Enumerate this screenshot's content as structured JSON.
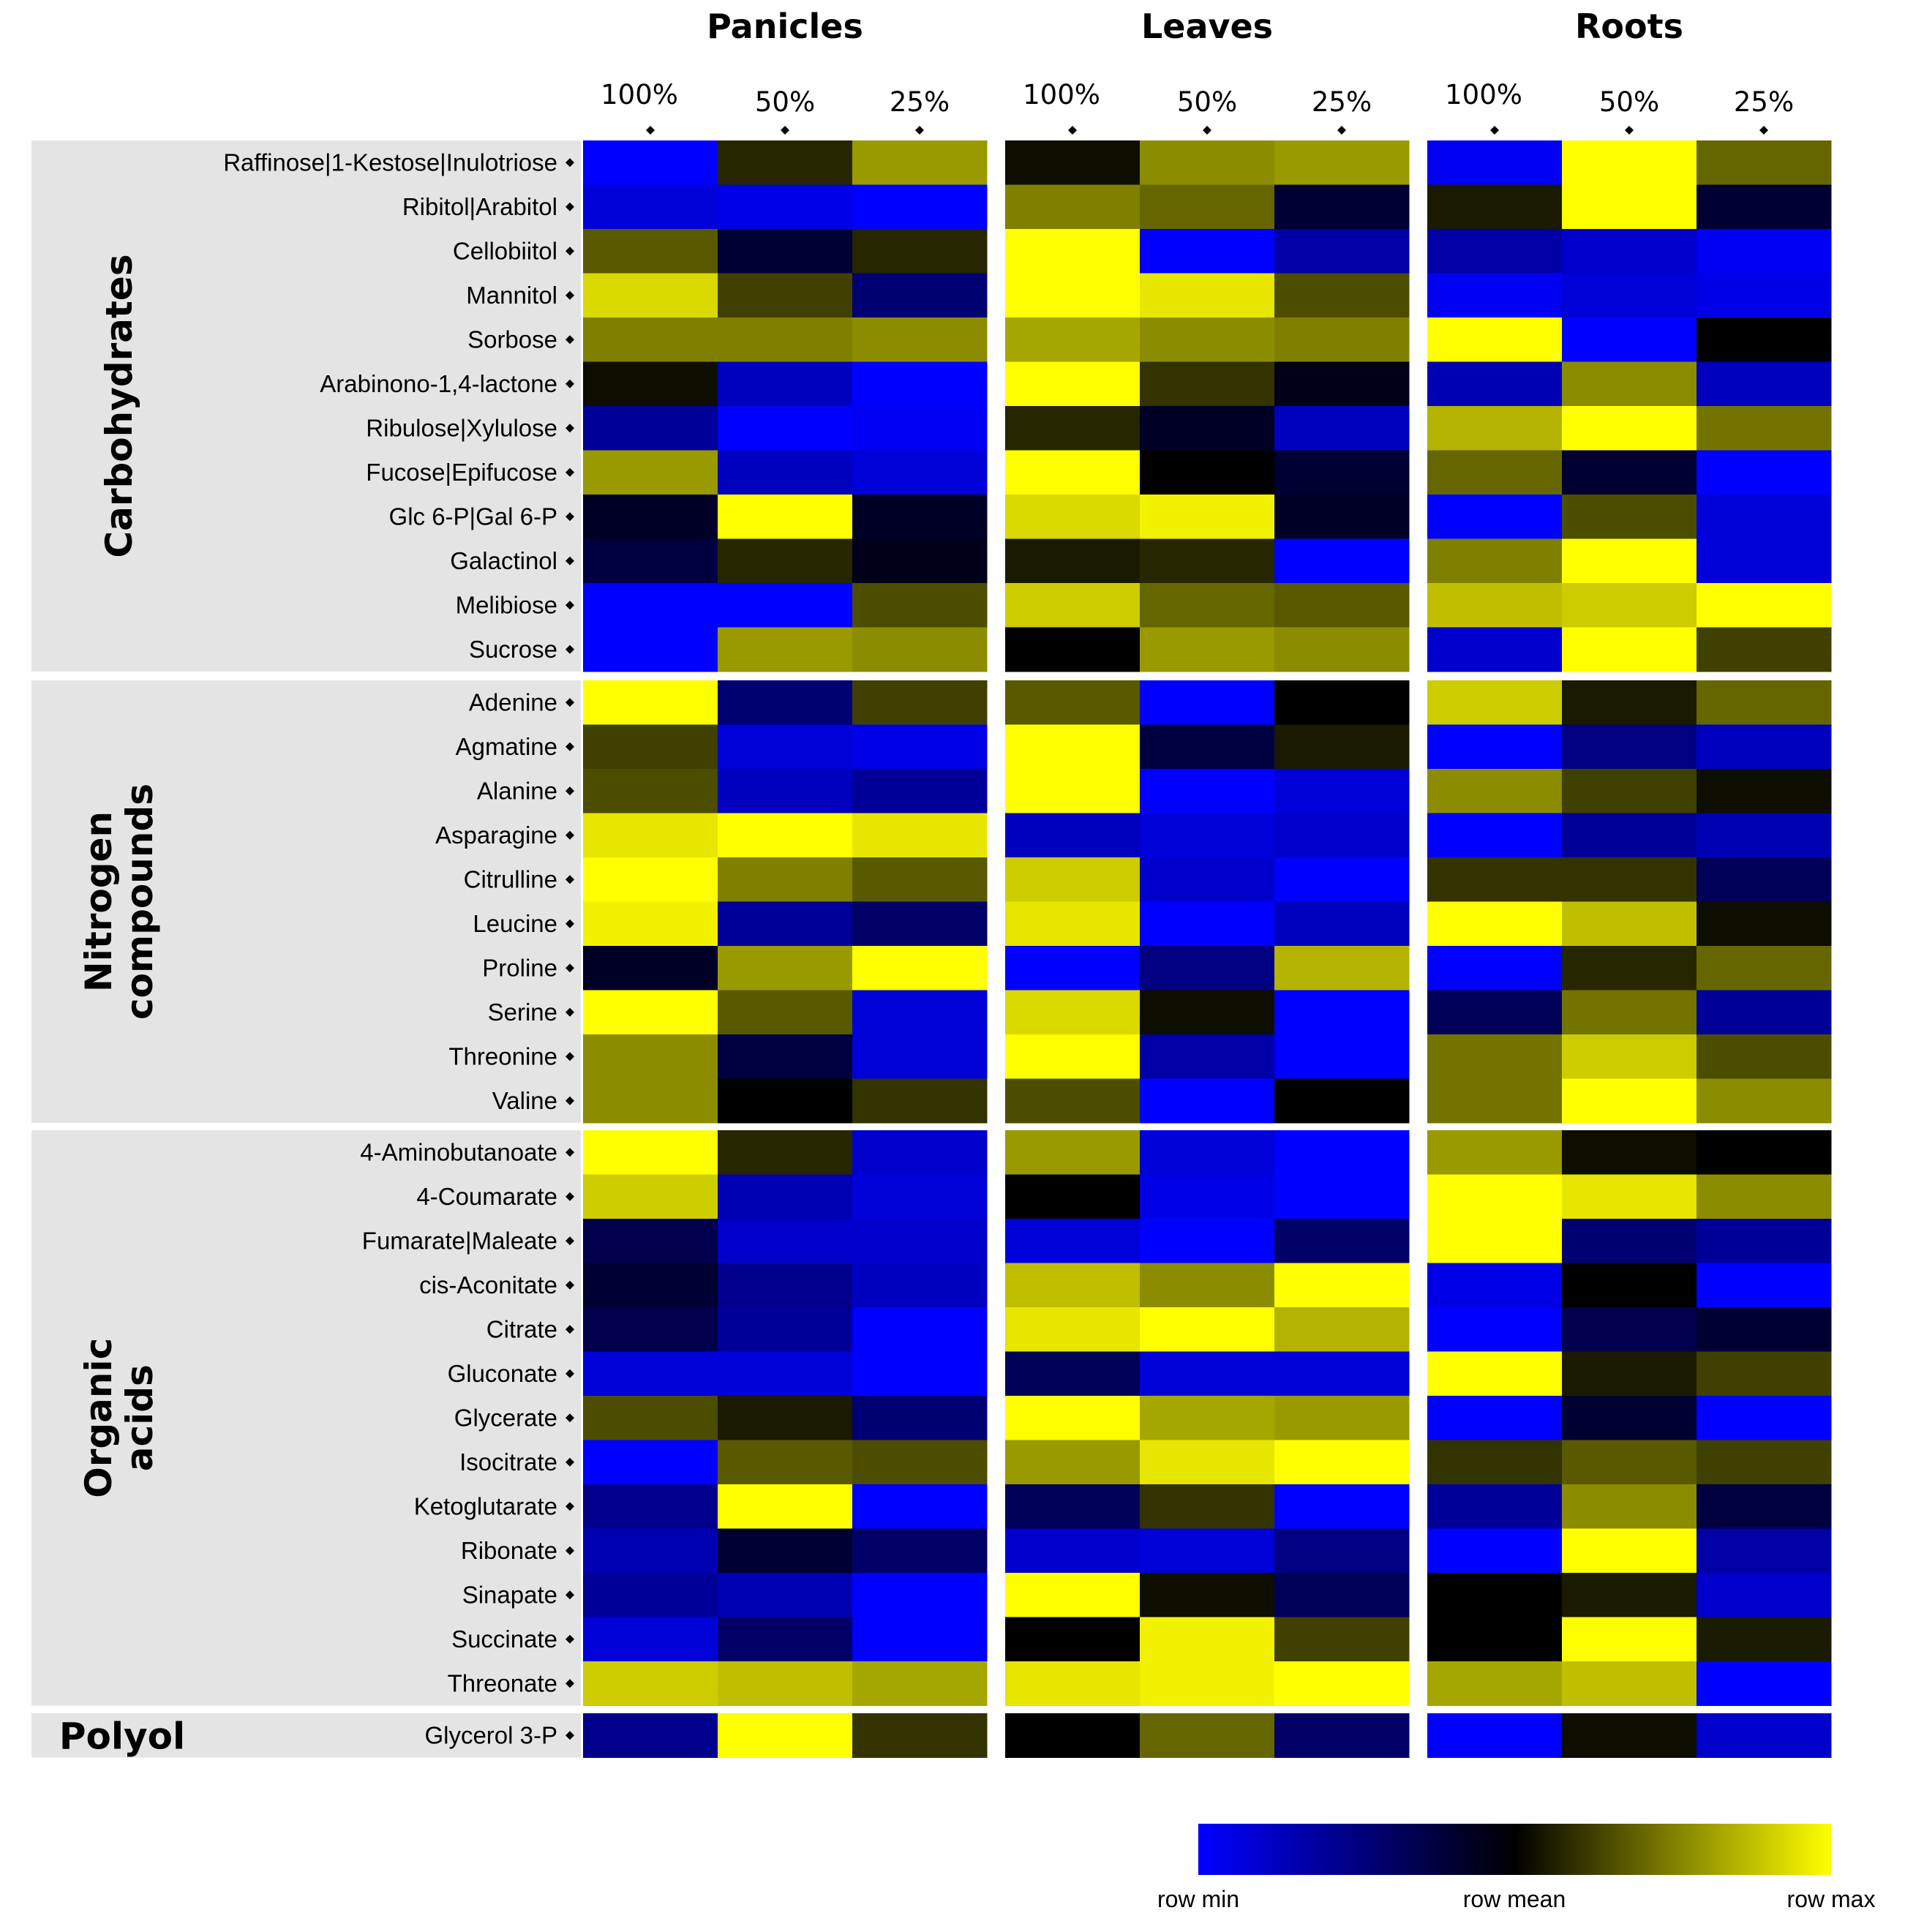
{
  "chart_data": {
    "type": "heatmap",
    "tissues": [
      "Panicles",
      "Leaves",
      "Roots"
    ],
    "conditions": [
      "100%",
      "50%",
      "25%"
    ],
    "scale": {
      "min_label": "row min",
      "mid_label": "row mean",
      "max_label": "row max",
      "min": -1,
      "max": 1
    },
    "colors": {
      "low": "#0000ff",
      "mid": "#000000",
      "high": "#ffff00",
      "group_bg": "#e4e4e4"
    },
    "groups": [
      {
        "name": [
          "Carbohydrates"
        ],
        "orientation": "vertical",
        "rows": [
          {
            "label": "Raffinose|1-Kestose|Inulotriose",
            "values": [
              -1,
              0.15,
              0.6,
              0.05,
              0.55,
              0.6,
              -0.95,
              1,
              0.4
            ]
          },
          {
            "label": "Ribitol|Arabitol",
            "values": [
              -0.85,
              -0.9,
              -1,
              0.5,
              0.4,
              -0.2,
              0.1,
              1,
              -0.2
            ]
          },
          {
            "label": "Cellobiitol",
            "values": [
              0.35,
              -0.2,
              0.15,
              1,
              -1,
              -0.65,
              -0.65,
              -0.8,
              -0.95
            ]
          },
          {
            "label": "Mannitol",
            "values": [
              0.85,
              0.25,
              -0.45,
              1,
              0.9,
              0.3,
              -0.95,
              -0.85,
              -0.9
            ]
          },
          {
            "label": "Sorbose",
            "values": [
              0.5,
              0.5,
              0.55,
              0.65,
              0.55,
              0.5,
              1,
              -1,
              0
            ]
          },
          {
            "label": "Arabinono-1,4-lactone",
            "values": [
              0.05,
              -0.75,
              -1,
              1,
              0.2,
              -0.1,
              -0.7,
              0.55,
              -0.75
            ]
          },
          {
            "label": "Ribulose|Xylulose",
            "values": [
              -0.6,
              -1,
              -0.95,
              0.15,
              -0.15,
              -0.75,
              0.7,
              1,
              0.45
            ]
          },
          {
            "label": "Fucose|Epifucose",
            "values": [
              0.6,
              -0.75,
              -0.85,
              1,
              0,
              -0.2,
              0.4,
              -0.2,
              -1
            ]
          },
          {
            "label": "Glc 6-P|Gal 6-P",
            "values": [
              -0.15,
              1,
              -0.15,
              0.85,
              0.95,
              -0.15,
              -1,
              0.3,
              -0.85
            ]
          },
          {
            "label": "Galactinol",
            "values": [
              -0.25,
              0.15,
              -0.1,
              0.1,
              0.15,
              -1,
              0.5,
              1,
              -0.85
            ]
          },
          {
            "label": "Melibiose",
            "values": [
              -1,
              -1,
              0.3,
              0.8,
              0.4,
              0.35,
              0.75,
              0.8,
              1
            ]
          },
          {
            "label": "Sucrose",
            "values": [
              -1,
              0.6,
              0.55,
              0,
              0.6,
              0.55,
              -0.8,
              1,
              0.25
            ]
          }
        ]
      },
      {
        "name": [
          "Nitrogen",
          "compounds"
        ],
        "orientation": "vertical",
        "rows": [
          {
            "label": "Adenine",
            "values": [
              1,
              -0.45,
              0.25,
              0.35,
              -1,
              0,
              0.8,
              0.1,
              0.4
            ]
          },
          {
            "label": "Agmatine",
            "values": [
              0.25,
              -0.85,
              -0.9,
              1,
              -0.25,
              0.1,
              -1,
              -0.5,
              -0.75
            ]
          },
          {
            "label": "Alanine",
            "values": [
              0.3,
              -0.75,
              -0.6,
              1,
              -1,
              -0.85,
              0.55,
              0.25,
              0.05
            ]
          },
          {
            "label": "Asparagine",
            "values": [
              0.9,
              1,
              0.9,
              -0.75,
              -0.85,
              -0.8,
              -1,
              -0.6,
              -0.7
            ]
          },
          {
            "label": "Citrulline",
            "values": [
              1,
              0.5,
              0.35,
              0.8,
              -0.8,
              -1,
              0.2,
              0.2,
              -0.35
            ]
          },
          {
            "label": "Leucine",
            "values": [
              0.95,
              -0.6,
              -0.4,
              0.9,
              -1,
              -0.75,
              1,
              0.75,
              0.05
            ]
          },
          {
            "label": "Proline",
            "values": [
              -0.15,
              0.6,
              1,
              -1,
              -0.5,
              0.7,
              -1,
              0.15,
              0.4
            ]
          },
          {
            "label": "Serine",
            "values": [
              1,
              0.35,
              -0.85,
              0.85,
              0.05,
              -1,
              -0.35,
              0.45,
              -0.6
            ]
          },
          {
            "label": "Threonine",
            "values": [
              0.55,
              -0.25,
              -0.85,
              1,
              -0.65,
              -1,
              0.45,
              0.8,
              0.3
            ]
          },
          {
            "label": "Valine",
            "values": [
              0.55,
              0,
              0.2,
              0.3,
              -1,
              0,
              0.45,
              1,
              0.55
            ]
          }
        ]
      },
      {
        "name": [
          "Organic",
          "acids"
        ],
        "orientation": "vertical",
        "rows": [
          {
            "label": "4-Aminobutanoate",
            "values": [
              1,
              0.15,
              -0.8,
              0.6,
              -0.85,
              -1,
              0.6,
              0.05,
              0
            ]
          },
          {
            "label": "4-Coumarate",
            "values": [
              0.8,
              -0.7,
              -0.85,
              0,
              -0.9,
              -1,
              1,
              0.9,
              0.55
            ]
          },
          {
            "label": "Fumarate|Maleate",
            "values": [
              -0.3,
              -0.8,
              -0.8,
              -0.85,
              -1,
              -0.4,
              1,
              -0.45,
              -0.6
            ]
          },
          {
            "label": "cis-Aconitate",
            "values": [
              -0.2,
              -0.55,
              -0.75,
              0.75,
              0.55,
              1,
              -0.9,
              0,
              -1
            ]
          },
          {
            "label": "Citrate",
            "values": [
              -0.3,
              -0.6,
              -1,
              0.9,
              1,
              0.7,
              -1,
              -0.3,
              -0.2
            ]
          },
          {
            "label": "Gluconate",
            "values": [
              -0.85,
              -0.85,
              -1,
              -0.35,
              -0.85,
              -0.85,
              1,
              0.1,
              0.25
            ]
          },
          {
            "label": "Glycerate",
            "values": [
              0.3,
              0.1,
              -0.45,
              1,
              0.65,
              0.6,
              -1,
              -0.2,
              -1
            ]
          },
          {
            "label": "Isocitrate",
            "values": [
              -1,
              0.35,
              0.3,
              0.6,
              0.9,
              1,
              0.2,
              0.35,
              0.25
            ]
          },
          {
            "label": "Ketoglutarate",
            "values": [
              -0.55,
              1,
              -1,
              -0.35,
              0.2,
              -1,
              -0.6,
              0.55,
              -0.25
            ]
          },
          {
            "label": "Ribonate",
            "values": [
              -0.7,
              -0.2,
              -0.4,
              -0.8,
              -0.85,
              -0.5,
              -1,
              1,
              -0.65
            ]
          },
          {
            "label": "Sinapate",
            "values": [
              -0.6,
              -0.7,
              -1,
              1,
              0.05,
              -0.35,
              0,
              0.1,
              -0.8
            ]
          },
          {
            "label": "Succinate",
            "values": [
              -0.85,
              -0.4,
              -1,
              0,
              0.95,
              0.25,
              0,
              1,
              0.1
            ]
          },
          {
            "label": "Threonate",
            "values": [
              0.8,
              0.75,
              0.65,
              0.9,
              0.95,
              1,
              0.65,
              0.75,
              -1
            ]
          }
        ]
      },
      {
        "name": [
          "Polyol"
        ],
        "orientation": "horizontal",
        "rows": [
          {
            "label": "Glycerol 3-P",
            "values": [
              -0.55,
              1,
              0.2,
              0,
              0.4,
              -0.4,
              -1,
              0.05,
              -0.8
            ]
          }
        ]
      }
    ]
  }
}
